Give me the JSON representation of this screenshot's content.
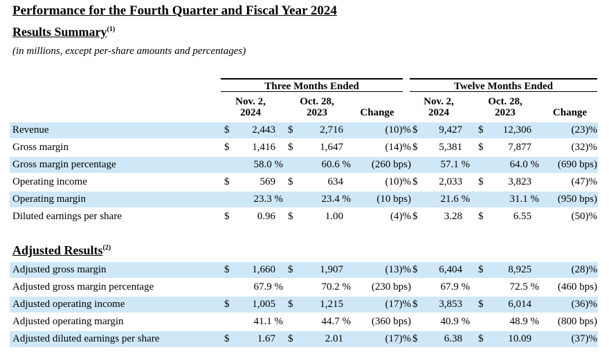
{
  "title": "Performance for the Fourth Quarter and Fiscal Year 2024",
  "results_summary": {
    "label": "Results Summary",
    "footnote": "(1)"
  },
  "units_note": "(in millions, except per-share amounts and percentages)",
  "groups": {
    "three_months": "Three Months Ended",
    "twelve_months": "Twelve Months Ended"
  },
  "columns": {
    "q_nov": {
      "line1": "Nov. 2,",
      "line2": "2024"
    },
    "q_oct": {
      "line1": "Oct. 28,",
      "line2": "2023"
    },
    "q_change": "Change",
    "y_nov": {
      "line1": "Nov. 2,",
      "line2": "2024"
    },
    "y_oct": {
      "line1": "Oct. 28,",
      "line2": "2023"
    },
    "y_change": "Change"
  },
  "summary_rows": [
    {
      "label": "Revenue",
      "q1d": "$",
      "q1": "2,443",
      "q2d": "$",
      "q2": "2,716",
      "qc": "(10)%",
      "y1d": "$",
      "y1": "9,427",
      "y2d": "$",
      "y2": "12,306",
      "yc": "(23)%"
    },
    {
      "label": "Gross margin",
      "q1d": "$",
      "q1": "1,416",
      "q2d": "$",
      "q2": "1,647",
      "qc": "(14)%",
      "y1d": "$",
      "y1": "5,381",
      "y2d": "$",
      "y2": "7,877",
      "yc": "(32)%"
    },
    {
      "label": "Gross margin percentage",
      "q1d": "",
      "q1": "58.0 %",
      "q2d": "",
      "q2": "60.6 %",
      "qc": "(260 bps)",
      "y1d": "",
      "y1": "57.1 %",
      "y2d": "",
      "y2": "64.0 %",
      "yc": "(690 bps)"
    },
    {
      "label": "Operating income",
      "q1d": "$",
      "q1": "569",
      "q2d": "$",
      "q2": "634",
      "qc": "(10)%",
      "y1d": "$",
      "y1": "2,033",
      "y2d": "$",
      "y2": "3,823",
      "yc": "(47)%"
    },
    {
      "label": "Operating margin",
      "q1d": "",
      "q1": "23.3 %",
      "q2d": "",
      "q2": "23.4 %",
      "qc": "(10 bps)",
      "y1d": "",
      "y1": "21.6 %",
      "y2d": "",
      "y2": "31.1 %",
      "yc": "(950 bps)"
    },
    {
      "label": "Diluted earnings per share",
      "q1d": "$",
      "q1": "0.96",
      "q2d": "$",
      "q2": "1.00",
      "qc": "(4)%",
      "y1d": "$",
      "y1": "3.28",
      "y2d": "$",
      "y2": "6.55",
      "yc": "(50)%"
    }
  ],
  "adjusted_results": {
    "label": "Adjusted Results",
    "footnote": "(2)"
  },
  "adjusted_rows": [
    {
      "label": "Adjusted gross margin",
      "q1d": "$",
      "q1": "1,660",
      "q2d": "$",
      "q2": "1,907",
      "qc": "(13)%",
      "y1d": "$",
      "y1": "6,404",
      "y2d": "$",
      "y2": "8,925",
      "yc": "(28)%"
    },
    {
      "label": "Adjusted gross margin percentage",
      "q1d": "",
      "q1": "67.9 %",
      "q2d": "",
      "q2": "70.2 %",
      "qc": "(230 bps)",
      "y1d": "",
      "y1": "67.9 %",
      "y2d": "",
      "y2": "72.5 %",
      "yc": "(460 bps)"
    },
    {
      "label": "Adjusted operating income",
      "q1d": "$",
      "q1": "1,005",
      "q2d": "$",
      "q2": "1,215",
      "qc": "(17)%",
      "y1d": "$",
      "y1": "3,853",
      "y2d": "$",
      "y2": "6,014",
      "yc": "(36)%"
    },
    {
      "label": "Adjusted operating margin",
      "q1d": "",
      "q1": "41.1 %",
      "q2d": "",
      "q2": "44.7 %",
      "qc": "(360 bps)",
      "y1d": "",
      "y1": "40.9 %",
      "y2d": "",
      "y2": "48.9 %",
      "yc": "(800 bps)"
    },
    {
      "label": "Adjusted diluted earnings per share",
      "q1d": "$",
      "q1": "1.67",
      "q2d": "$",
      "q2": "2.01",
      "qc": "(17)%",
      "y1d": "$",
      "y1": "6.38",
      "y2d": "$",
      "y2": "10.09",
      "yc": "(37)%"
    }
  ],
  "colors": {
    "row_shade": "#cfe8f8"
  }
}
